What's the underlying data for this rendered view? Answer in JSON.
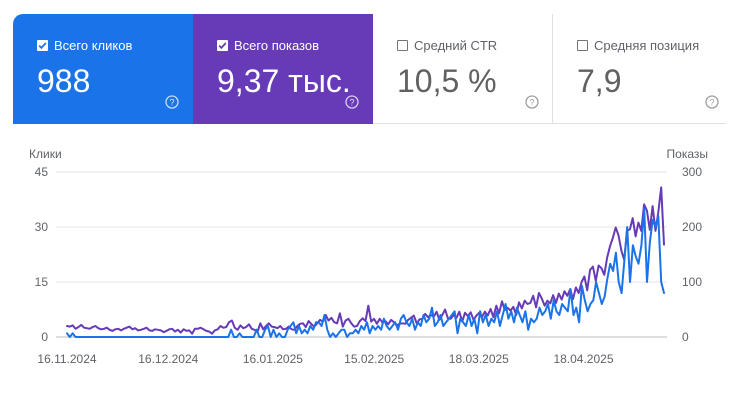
{
  "metrics": [
    {
      "label": "Всего кликов",
      "value": "988",
      "checked": true,
      "color": "#1a73e8"
    },
    {
      "label": "Всего показов",
      "value": "9,37 тыс.",
      "checked": true,
      "color": "#673ab7"
    },
    {
      "label": "Средний CTR",
      "value": "10,5 %",
      "checked": false,
      "color": "#ffffff"
    },
    {
      "label": "Средняя позиция",
      "value": "7,9",
      "checked": false,
      "color": "#ffffff"
    }
  ],
  "chart_data": {
    "type": "line",
    "left_axis_label": "Клики",
    "right_axis_label": "Показы",
    "left_ticks": [
      "0",
      "15",
      "30",
      "45"
    ],
    "right_ticks": [
      "0",
      "100",
      "200",
      "300"
    ],
    "ylim_left": [
      0,
      45
    ],
    "ylim_right": [
      0,
      300
    ],
    "x_ticks": [
      "16.11.2024",
      "16.12.2024",
      "16.01.2025",
      "15.02.2025",
      "18.03.2025",
      "18.04.2025"
    ],
    "x_range": [
      "2024-11-16",
      "2025-05-16"
    ],
    "grid": true,
    "series": [
      {
        "axis": "left",
        "color": "#1a73e8",
        "values": [
          1,
          0,
          1,
          0,
          0,
          0,
          0,
          0,
          0,
          0,
          0,
          0,
          0,
          0,
          0,
          0,
          0,
          0,
          0,
          0,
          0,
          0,
          0,
          0,
          0,
          0,
          0,
          0,
          0,
          0,
          0,
          0,
          0,
          0,
          0,
          0,
          0,
          0,
          0,
          0,
          0,
          0,
          0,
          0,
          0,
          0,
          0,
          0,
          0,
          0,
          0,
          0,
          0,
          0,
          0,
          0,
          0,
          0,
          2,
          0,
          0,
          1,
          0,
          0,
          0,
          0,
          0,
          2,
          0,
          0,
          2,
          3,
          0,
          2,
          0,
          1,
          0,
          0,
          2,
          3,
          4,
          1,
          3,
          1,
          2,
          1,
          3,
          2,
          4,
          4,
          3,
          6,
          2,
          0,
          1,
          0,
          1,
          2,
          2,
          0,
          1,
          1,
          2,
          1,
          3,
          2,
          4,
          1,
          3,
          2,
          3,
          2,
          5,
          3,
          2,
          3,
          4,
          2,
          5,
          6,
          4,
          3,
          5,
          2,
          4,
          3,
          6,
          4,
          5,
          8,
          3,
          4,
          6,
          3,
          4,
          5,
          6,
          7,
          1,
          5,
          4,
          3,
          6,
          3,
          5,
          1,
          7,
          4,
          6,
          3,
          5,
          4,
          7,
          3,
          6,
          9,
          5,
          7,
          4,
          8,
          6,
          4,
          7,
          2,
          5,
          4,
          5,
          8,
          6,
          7,
          9,
          5,
          10,
          7,
          6,
          9,
          8,
          7,
          13,
          6,
          8,
          4,
          14,
          10,
          7,
          9,
          10,
          15,
          12,
          9,
          11,
          16,
          20,
          18,
          23,
          15,
          12,
          21,
          30,
          15,
          25,
          22,
          20,
          25,
          35,
          15,
          26,
          32,
          30,
          33,
          15,
          12
        ]
      },
      {
        "axis": "right",
        "color": "#673ab7",
        "values": [
          20,
          19,
          21,
          15,
          18,
          22,
          17,
          16,
          15,
          18,
          20,
          16,
          14,
          15,
          17,
          13,
          11,
          14,
          15,
          12,
          15,
          17,
          19,
          14,
          16,
          12,
          13,
          15,
          17,
          12,
          11,
          14,
          13,
          12,
          9,
          11,
          14,
          15,
          10,
          13,
          8,
          14,
          11,
          12,
          6,
          15,
          15,
          17,
          14,
          11,
          10,
          6,
          12,
          14,
          20,
          17,
          18,
          27,
          30,
          17,
          13,
          21,
          16,
          18,
          23,
          15,
          13,
          9,
          25,
          14,
          20,
          25,
          19,
          18,
          16,
          20,
          14,
          15,
          19,
          14,
          13,
          20,
          24,
          25,
          18,
          29,
          23,
          19,
          25,
          31,
          28,
          40,
          30,
          35,
          27,
          25,
          43,
          19,
          30,
          33,
          25,
          19,
          20,
          29,
          34,
          29,
          57,
          28,
          33,
          24,
          33,
          26,
          29,
          23,
          31,
          27,
          21,
          24,
          25,
          24,
          31,
          35,
          39,
          25,
          32,
          33,
          42,
          36,
          40,
          37,
          46,
          31,
          40,
          50,
          34,
          33,
          40,
          35,
          46,
          28,
          44,
          38,
          45,
          31,
          39,
          44,
          37,
          46,
          39,
          51,
          36,
          57,
          43,
          65,
          49,
          53,
          48,
          55,
          40,
          63,
          52,
          66,
          60,
          62,
          75,
          54,
          80,
          70,
          57,
          66,
          61,
          76,
          62,
          79,
          68,
          83,
          75,
          87,
          69,
          90,
          80,
          100,
          110,
          85,
          122,
          128,
          102,
          130,
          125,
          113,
          144,
          165,
          180,
          199,
          185,
          157,
          140,
          193,
          196,
          216,
          183,
          208,
          193,
          241,
          230,
          195,
          238,
          193,
          227,
          272,
          168
        ]
      }
    ]
  }
}
